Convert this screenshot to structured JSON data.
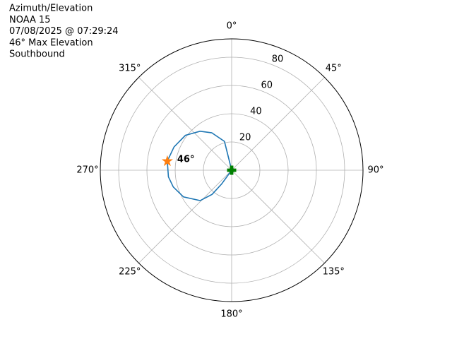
{
  "chart_data": {
    "type": "polar",
    "title": [
      "Azimuth/Elevation",
      "NOAA 15",
      "07/08/2025 @ 07:29:24",
      "46° Max Elevation",
      "Southbound"
    ],
    "theta_direction": "clockwise",
    "theta_zero": "N",
    "xticks": [
      {
        "value": 0,
        "label": "0°"
      },
      {
        "value": 45,
        "label": "45°"
      },
      {
        "value": 90,
        "label": "90°"
      },
      {
        "value": 135,
        "label": "135°"
      },
      {
        "value": 180,
        "label": "180°"
      },
      {
        "value": 225,
        "label": "225°"
      },
      {
        "value": 270,
        "label": "270°"
      },
      {
        "value": 315,
        "label": "315°"
      }
    ],
    "ylim": [
      0,
      93
    ],
    "yticks": [
      20,
      40,
      60,
      80
    ],
    "grid": true,
    "series": [
      {
        "color": "#1f77b4",
        "theta": [
          346,
          346,
          332,
          321,
          307,
          292,
          278,
          264,
          254,
          241,
          226,
          219,
          216,
          216
        ],
        "r": [
          0,
          21,
          30,
          35.5,
          41,
          44,
          46,
          45,
          43,
          39,
          31,
          22,
          12,
          0
        ]
      }
    ],
    "endpoint_color": "#008000",
    "max_point": {
      "theta": 278,
      "r": 46,
      "label": "46°",
      "color": "#ff7f0e"
    }
  }
}
